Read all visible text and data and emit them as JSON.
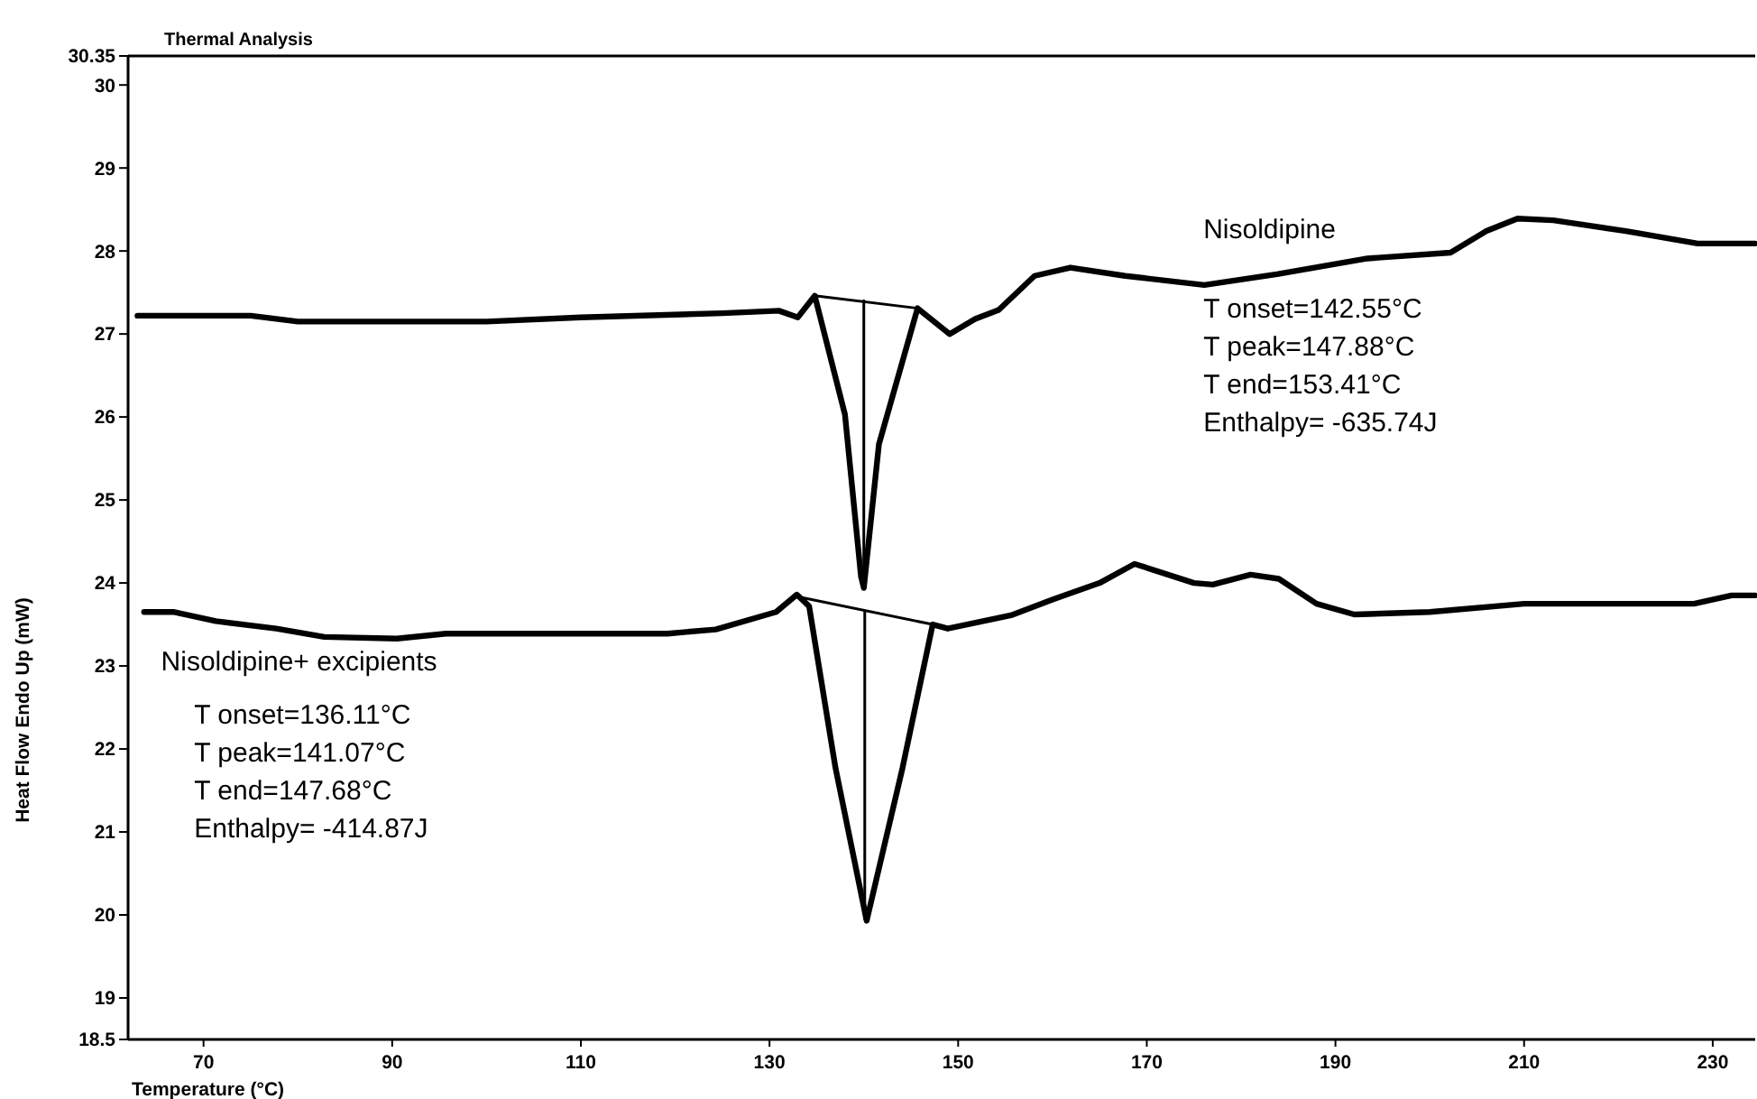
{
  "chart_data": {
    "type": "line",
    "title": "Thermal Analysis",
    "xlabel": "Temperature (°C)",
    "ylabel": "Heat Flow Endo Up (mW)",
    "xlim": [
      62,
      234.5
    ],
    "xticks": [
      70,
      90,
      110,
      130,
      150,
      170,
      190,
      210,
      230
    ],
    "ylim": [
      18.5,
      30.35
    ],
    "yticks": [
      18.5,
      19,
      20,
      21,
      22,
      23,
      24,
      25,
      26,
      27,
      28,
      29,
      30,
      30.35
    ],
    "grid": false,
    "marker": "none",
    "line_style": "solid",
    "series": [
      {
        "name": "Nisoldipine",
        "color": "#000000",
        "x": [
          63,
          75,
          80,
          100,
          110,
          125,
          131,
          133,
          134.8,
          138,
          139.7,
          140,
          141.6,
          145.7,
          149.1,
          151.8,
          154.3,
          158.1,
          161.9,
          167.7,
          176.1,
          183.8,
          193.4,
          202.2,
          206,
          209.3,
          213.1,
          220.8,
          228.4,
          234.5
        ],
        "values": [
          27.22,
          27.22,
          27.15,
          27.15,
          27.2,
          27.25,
          27.28,
          27.2,
          27.46,
          26.03,
          24.08,
          23.94,
          25.67,
          27.31,
          27.0,
          27.18,
          27.29,
          27.7,
          27.8,
          27.7,
          27.59,
          27.72,
          27.91,
          27.98,
          28.24,
          28.39,
          28.37,
          28.24,
          28.09,
          28.09
        ]
      },
      {
        "name": "Nisoldipine+ excipients",
        "color": "#000000",
        "x": [
          63.7,
          66.9,
          71.3,
          77.7,
          82.8,
          90.5,
          95.7,
          119.2,
          124.3,
          130.7,
          132.9,
          134.2,
          137,
          140.3,
          144.1,
          147.3,
          148.9,
          155.6,
          160,
          165,
          168.7,
          175,
          177,
          181,
          184,
          188,
          192,
          200,
          210,
          220,
          228,
          232,
          234.5
        ],
        "values": [
          23.65,
          23.65,
          23.54,
          23.45,
          23.35,
          23.33,
          23.39,
          23.39,
          23.44,
          23.65,
          23.86,
          23.72,
          21.77,
          19.93,
          21.77,
          23.5,
          23.45,
          23.61,
          23.8,
          24.0,
          24.23,
          24.0,
          23.98,
          24.1,
          24.05,
          23.75,
          23.62,
          23.65,
          23.75,
          23.75,
          23.75,
          23.85,
          23.85
        ]
      },
      {
        "color": "#000000",
        "x": [
          134.8,
          145.7
        ],
        "values": [
          27.46,
          27.31
        ]
      },
      {
        "color": "#000000",
        "x": [
          140,
          140
        ],
        "values": [
          27.4,
          23.94
        ]
      },
      {
        "color": "#000000",
        "x": [
          133.2,
          147.3
        ],
        "values": [
          23.83,
          23.5
        ]
      },
      {
        "color": "#000000",
        "x": [
          140.1,
          140.1
        ],
        "values": [
          23.66,
          19.95
        ]
      }
    ],
    "annotations": [
      "T onset=142.55°C",
      "T peak=147.88°C",
      "T end=153.41°C",
      "Enthalpy= -635.74J",
      "T onset=136.11°C",
      "T peak=141.07°C",
      "T end=147.68°C",
      "Enthalpy= -414.87J"
    ]
  }
}
